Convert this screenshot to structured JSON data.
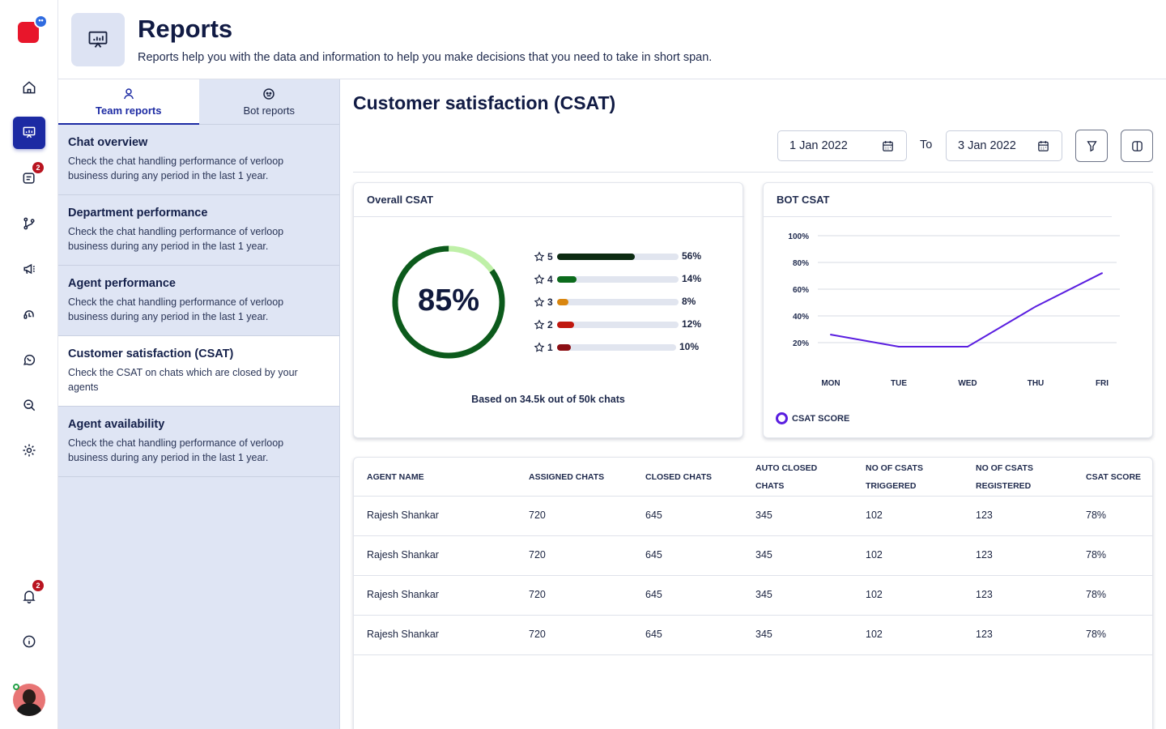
{
  "rail": {
    "logo_bubble": "••",
    "messages_badge": "2",
    "notifications_badge": "2"
  },
  "header": {
    "title": "Reports",
    "subtitle": "Reports help you with the data and information to help you make decisions that you need to take in short span."
  },
  "sidebar": {
    "tabs": [
      {
        "label": "Team reports",
        "active": true
      },
      {
        "label": "Bot reports",
        "active": false
      }
    ],
    "items": [
      {
        "title": "Chat overview",
        "desc": "Check the chat handling performance of verloop business during any period in the last 1 year."
      },
      {
        "title": "Department performance",
        "desc": "Check the chat handling performance of verloop business during any period in the last 1 year."
      },
      {
        "title": "Agent performance",
        "desc": "Check the chat handling performance of verloop business during any period in the last 1 year."
      },
      {
        "title": "Customer satisfaction (CSAT)",
        "desc": "Check the CSAT on chats which are closed by your agents"
      },
      {
        "title": "Agent availability",
        "desc": "Check the chat handling performance of verloop business during any period in the last 1 year."
      }
    ]
  },
  "main": {
    "title": "Customer satisfaction (CSAT)",
    "date_from": "1 Jan 2022",
    "to_label": "To",
    "date_to": "3 Jan 2022"
  },
  "overall_csat": {
    "title": "Overall CSAT",
    "score_label": "85%",
    "score_value": 0.85,
    "ratings": [
      {
        "stars": "5",
        "percent_label": "56%",
        "value": 0.56,
        "color": "#0c2b12"
      },
      {
        "stars": "4",
        "percent_label": "14%",
        "value": 0.14,
        "color": "#0c6b1c"
      },
      {
        "stars": "3",
        "percent_label": "8%",
        "value": 0.08,
        "color": "#d9860f"
      },
      {
        "stars": "2",
        "percent_label": "12%",
        "value": 0.12,
        "color": "#c0180f"
      },
      {
        "stars": "1",
        "percent_label": "10%",
        "value": 0.1,
        "color": "#8c0f14"
      }
    ],
    "based_on": "Based on 34.5k out of 50k chats"
  },
  "chart_data": {
    "type": "line",
    "title": "BOT CSAT",
    "categories": [
      "MON",
      "TUE",
      "WED",
      "THU",
      "FRI"
    ],
    "y_ticks": [
      "100%",
      "80%",
      "60%",
      "40%",
      "20%"
    ],
    "ylim": [
      0,
      100
    ],
    "series": [
      {
        "name": "CSAT SCORE",
        "values": [
          26,
          17,
          17,
          47,
          72
        ],
        "color": "#5a1ee0"
      }
    ],
    "legend": "bottom-left",
    "grid": true
  },
  "table": {
    "headers": [
      [
        "AGENT NAME"
      ],
      [
        "ASSIGNED CHATS"
      ],
      [
        "CLOSED CHATS"
      ],
      [
        "AUTO CLOSED",
        "CHATS"
      ],
      [
        "NO OF CSATS",
        "TRIGGERED"
      ],
      [
        "NO OF CSATS",
        "REGISTERED"
      ],
      [
        "CSAT SCORE"
      ]
    ],
    "rows": [
      [
        "Rajesh Shankar",
        "720",
        "645",
        "345",
        "102",
        "123",
        "78%"
      ],
      [
        "Rajesh Shankar",
        "720",
        "645",
        "345",
        "102",
        "123",
        "78%"
      ],
      [
        "Rajesh Shankar",
        "720",
        "645",
        "345",
        "102",
        "123",
        "78%"
      ],
      [
        "Rajesh Shankar",
        "720",
        "645",
        "345",
        "102",
        "123",
        "78%"
      ]
    ]
  }
}
